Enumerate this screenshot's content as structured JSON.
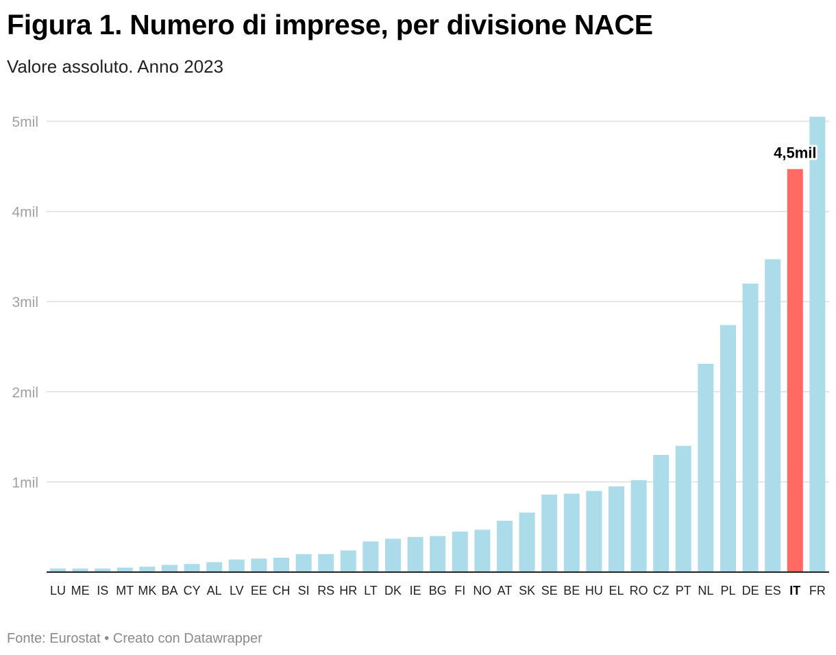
{
  "title": "Figura 1. Numero di imprese, per divisione NACE",
  "subtitle": "Valore assoluto. Anno 2023",
  "footer": {
    "source": "Fonte: Eurostat",
    "separator": " • ",
    "credit": "Creato con Datawrapper"
  },
  "colors": {
    "bar": "#acdcea",
    "highlight": "#ff6b63",
    "grid": "#dddddd",
    "axis": "#222222"
  },
  "chart_data": {
    "type": "bar",
    "title": "Figura 1. Numero di imprese, per divisione NACE",
    "xlabel": "",
    "ylabel": "",
    "ylim": [
      0,
      5
    ],
    "yunit": "mil",
    "yticks": [
      {
        "value": 1,
        "label": "1mil"
      },
      {
        "value": 2,
        "label": "2mil"
      },
      {
        "value": 3,
        "label": "3mil"
      },
      {
        "value": 4,
        "label": "4mil"
      },
      {
        "value": 5,
        "label": "5mil"
      }
    ],
    "categories": [
      "LU",
      "ME",
      "IS",
      "MT",
      "MK",
      "BA",
      "CY",
      "AL",
      "LV",
      "EE",
      "CH",
      "SI",
      "RS",
      "HR",
      "LT",
      "DK",
      "IE",
      "BG",
      "FI",
      "NO",
      "AT",
      "SK",
      "SE",
      "BE",
      "HU",
      "EL",
      "RO",
      "CZ",
      "PT",
      "NL",
      "PL",
      "DE",
      "ES",
      "IT",
      "FR"
    ],
    "values": [
      0.04,
      0.04,
      0.04,
      0.05,
      0.06,
      0.08,
      0.09,
      0.11,
      0.14,
      0.15,
      0.16,
      0.2,
      0.2,
      0.24,
      0.34,
      0.37,
      0.39,
      0.4,
      0.45,
      0.47,
      0.57,
      0.66,
      0.86,
      0.87,
      0.9,
      0.95,
      1.02,
      1.3,
      1.4,
      2.31,
      2.74,
      3.2,
      3.47,
      4.47,
      5.05
    ],
    "highlight": "IT",
    "annotations": [
      {
        "category": "IT",
        "label": "4,5mil"
      }
    ]
  }
}
